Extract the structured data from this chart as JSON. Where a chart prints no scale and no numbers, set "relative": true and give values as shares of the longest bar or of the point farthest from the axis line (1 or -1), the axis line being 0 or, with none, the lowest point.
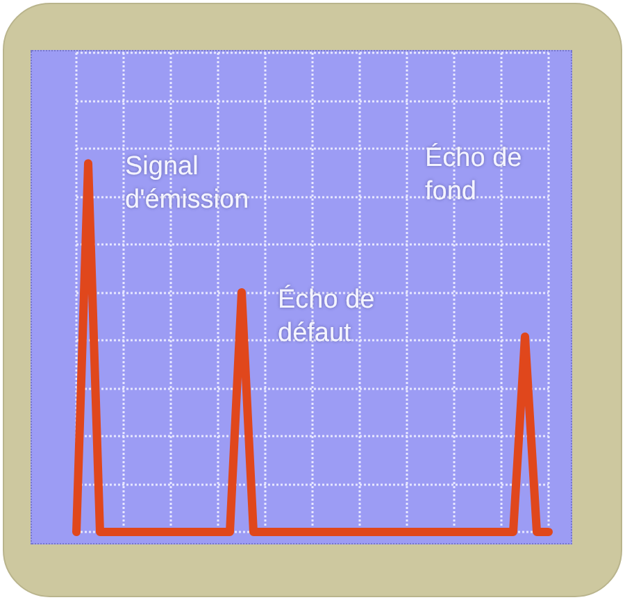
{
  "chart_data": {
    "type": "line",
    "relative": true,
    "categories": [
      null,
      null,
      null,
      null,
      null,
      null,
      null,
      null,
      null,
      null,
      null,
      null,
      null,
      null,
      null,
      null,
      null,
      null,
      null,
      null,
      null,
      null,
      null,
      null,
      null,
      null,
      null,
      null,
      null,
      null,
      null,
      null,
      null,
      null,
      null,
      null,
      null,
      null,
      null,
      null,
      null
    ],
    "values": [
      0,
      1,
      0,
      0,
      0,
      0,
      0,
      0,
      0,
      0,
      0,
      0,
      0,
      0,
      0.65,
      0,
      0,
      0,
      0,
      0,
      0,
      0,
      0,
      0,
      0,
      0,
      0,
      0,
      0,
      0,
      0,
      0,
      0,
      0,
      0,
      0,
      0,
      0,
      0.53,
      0,
      0
    ],
    "color": "#e0471c",
    "grid": true,
    "annotations": [
      "Signal d'émission",
      "Écho de défaut",
      "Écho de fond"
    ]
  }
}
